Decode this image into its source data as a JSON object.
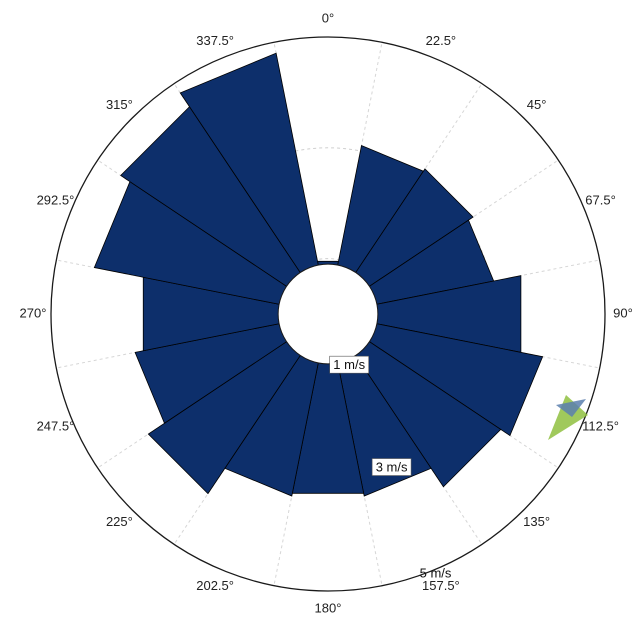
{
  "chart_data": {
    "type": "polar-bar",
    "direction_labels": [
      "0°",
      "22.5°",
      "45°",
      "67.5°",
      "90°",
      "112.5°",
      "135°",
      "157.5°",
      "180°",
      "202.5°",
      "225°",
      "247.5°",
      "270°",
      "292.5°",
      "315°",
      "337.5°"
    ],
    "directions_deg": [
      0,
      22.5,
      45,
      67.5,
      90,
      112.5,
      135,
      157.5,
      180,
      202.5,
      225,
      247.5,
      270,
      292.5,
      315,
      337.5
    ],
    "ring_labels": [
      "1 m/s",
      "3 m/s",
      "5 m/s"
    ],
    "rings_value": [
      1,
      3,
      5
    ],
    "ring_label_angle_deg": 157.5,
    "values": [
      0.97,
      3.1,
      3.15,
      3.05,
      3.55,
      3.95,
      3.75,
      3.35,
      3.3,
      3.35,
      3.9,
      3.55,
      3.4,
      4.3,
      4.5,
      4.8
    ],
    "max_radius_value": 5,
    "inner_hole_value": 0.9,
    "bar_color": "#0d2f6b",
    "bar_edge_color": "#000000",
    "grid": true,
    "grid_style": "dotted",
    "logo_colors": [
      "#8fbf3f",
      "#5a7fae"
    ]
  }
}
